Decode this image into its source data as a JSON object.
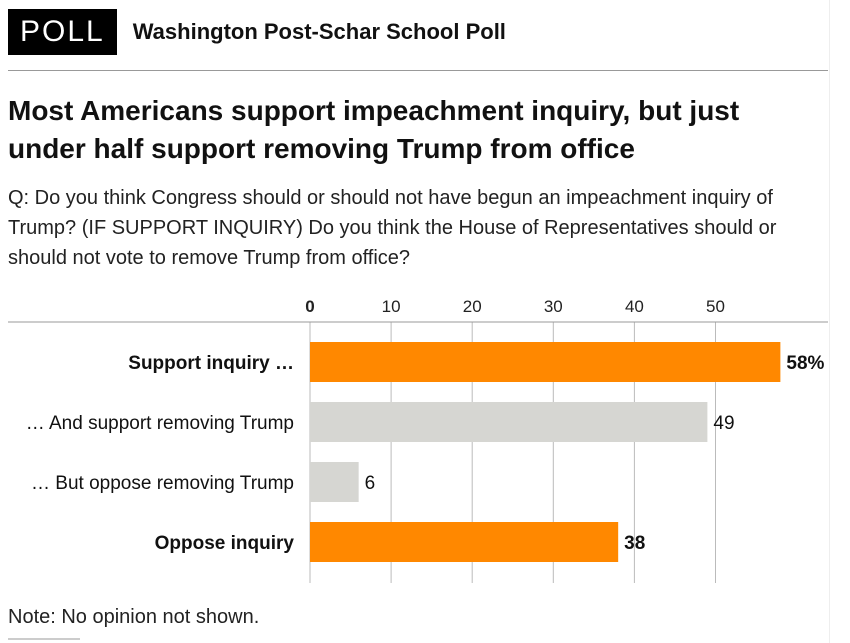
{
  "header": {
    "badge": "POLL",
    "source": "Washington Post-Schar School Poll"
  },
  "title": "Most Americans support impeachment inquiry, but just under half support removing Trump from office",
  "question": "Q: Do you think Congress should or should not have begun an impeachment inquiry of Trump? (IF SUPPORT INQUIRY) Do you think the House of Representatives should or should not vote to remove Trump from office?",
  "note": "Note: No opinion not shown.",
  "colors": {
    "primary": "#ff8800",
    "secondary": "#d6d6d2",
    "grid": "#bbbbbb"
  },
  "chart_data": {
    "type": "bar",
    "orientation": "horizontal",
    "xlim": [
      0,
      58
    ],
    "ticks": [
      0,
      10,
      20,
      30,
      40,
      50
    ],
    "grid": true,
    "categories": [
      "Support inquiry …",
      "… And support removing Trump",
      "… But oppose removing Trump",
      "Oppose inquiry"
    ],
    "values": [
      58,
      49,
      6,
      38
    ],
    "value_labels": [
      "58%",
      "49",
      "6",
      "38"
    ],
    "emphasis": [
      true,
      false,
      false,
      true
    ]
  }
}
